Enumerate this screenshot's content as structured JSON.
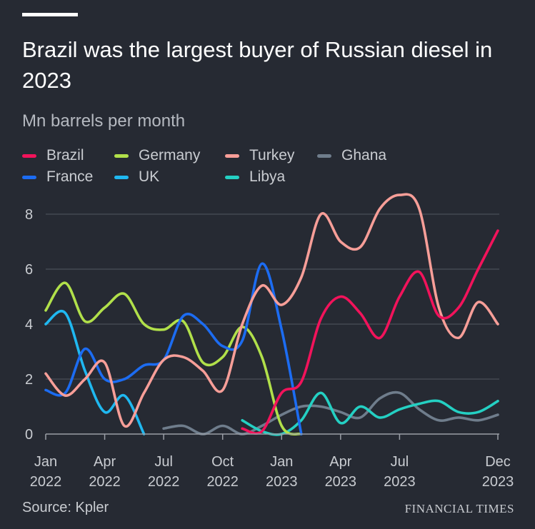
{
  "colors": {
    "background": "#262a33",
    "gridline": "#4a4f58",
    "axis": "#9a9ea6"
  },
  "chart_data": {
    "type": "line",
    "title": "Brazil was the largest buyer of Russian diesel in 2023",
    "ylabel": "Mn barrels per month",
    "source": "Source: Kpler",
    "publisher": "FINANCIAL TIMES",
    "ylim": [
      0,
      9
    ],
    "yticks": [
      0,
      2,
      4,
      6,
      8
    ],
    "xlim": [
      0,
      23
    ],
    "xticks": [
      {
        "month": 0,
        "line1": "Jan",
        "line2": "2022"
      },
      {
        "month": 3,
        "line1": "Apr",
        "line2": "2022"
      },
      {
        "month": 6,
        "line1": "Jul",
        "line2": "2022"
      },
      {
        "month": 9,
        "line1": "Oct",
        "line2": "2022"
      },
      {
        "month": 12,
        "line1": "Jan",
        "line2": "2023"
      },
      {
        "month": 15,
        "line1": "Apr",
        "line2": "2023"
      },
      {
        "month": 18,
        "line1": "Jul",
        "line2": "2023"
      },
      {
        "month": 23,
        "line1": "Dec",
        "line2": "2023"
      }
    ],
    "grid": true,
    "series": [
      {
        "name": "Ghana",
        "color": "#6f7d8c",
        "start": 6,
        "values": [
          0.2,
          0.3,
          0.0,
          0.3,
          0.0,
          0.3,
          0.7,
          1.0,
          1.0,
          0.8,
          0.6,
          1.3,
          1.5,
          0.9,
          0.5,
          0.6,
          0.5,
          0.7
        ]
      },
      {
        "name": "Libya",
        "color": "#24d0c3",
        "start": 10,
        "values": [
          0.5,
          0.1,
          0.0,
          0.5,
          1.5,
          0.4,
          1.0,
          0.6,
          0.9,
          1.1,
          1.2,
          0.8,
          0.8,
          1.2
        ]
      },
      {
        "name": "Germany",
        "color": "#b1e04a",
        "start": 0,
        "values": [
          4.5,
          5.5,
          4.1,
          4.6,
          5.1,
          4.0,
          3.8,
          4.1,
          2.6,
          2.8,
          3.9,
          2.8,
          0.3,
          0.0
        ]
      },
      {
        "name": "UK",
        "color": "#1fb8f0",
        "start": 0,
        "values": [
          4.0,
          4.4,
          2.3,
          0.8,
          1.4,
          0.0
        ]
      },
      {
        "name": "France",
        "color": "#1c6cf2",
        "start": 0,
        "values": [
          1.6,
          1.5,
          3.1,
          2.0,
          2.0,
          2.5,
          2.7,
          4.3,
          4.0,
          3.2,
          3.4,
          6.2,
          3.8,
          0.0
        ]
      },
      {
        "name": "Turkey",
        "color": "#f79e98",
        "start": 0,
        "values": [
          2.2,
          1.4,
          2.0,
          2.6,
          0.3,
          1.5,
          2.7,
          2.8,
          2.3,
          1.6,
          4.0,
          5.4,
          4.7,
          5.7,
          8.0,
          7.0,
          6.8,
          8.2,
          8.7,
          8.2,
          4.6,
          3.5,
          4.8,
          4.0
        ]
      },
      {
        "name": "Brazil",
        "color": "#f2135b",
        "start": 10,
        "values": [
          0.2,
          0.1,
          1.5,
          1.9,
          4.2,
          5.0,
          4.4,
          3.5,
          5.0,
          5.9,
          4.3,
          4.6,
          6.0,
          7.4
        ]
      }
    ],
    "legend": [
      {
        "name": "Brazil",
        "color": "#f2135b"
      },
      {
        "name": "Germany",
        "color": "#b1e04a"
      },
      {
        "name": "Turkey",
        "color": "#f79e98"
      },
      {
        "name": "Ghana",
        "color": "#6f7d8c"
      },
      {
        "name": "France",
        "color": "#1c6cf2"
      },
      {
        "name": "UK",
        "color": "#1fb8f0"
      },
      {
        "name": "Libya",
        "color": "#24d0c3"
      }
    ]
  }
}
